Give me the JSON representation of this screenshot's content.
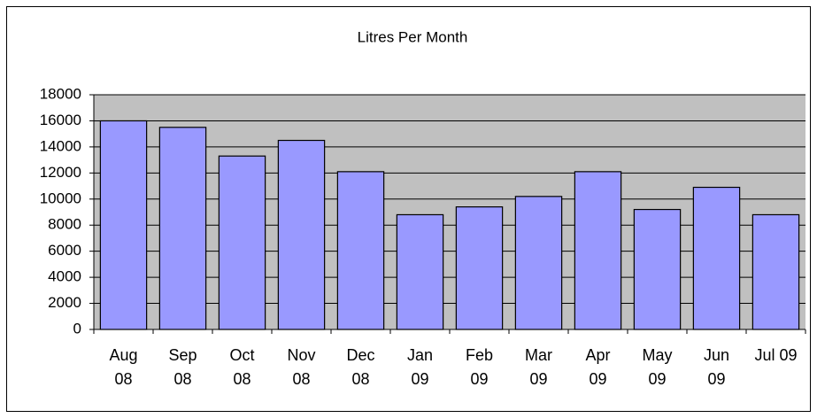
{
  "chart_data": {
    "type": "bar",
    "title": "Litres Per Month",
    "categories": [
      "Aug\n08",
      "Sep\n08",
      "Oct\n08",
      "Nov\n08",
      "Dec\n08",
      "Jan\n09",
      "Feb\n09",
      "Mar\n09",
      "Apr\n09",
      "May\n09",
      "Jun\n09",
      "Jul 09"
    ],
    "values": [
      16000,
      15500,
      13300,
      14500,
      12100,
      8800,
      9400,
      10200,
      12100,
      9200,
      10900,
      8800
    ],
    "color": "#9999ff",
    "ylim": [
      0,
      18000
    ],
    "yticks": [
      0,
      2000,
      4000,
      6000,
      8000,
      10000,
      12000,
      14000,
      16000,
      18000
    ],
    "grid": true
  }
}
